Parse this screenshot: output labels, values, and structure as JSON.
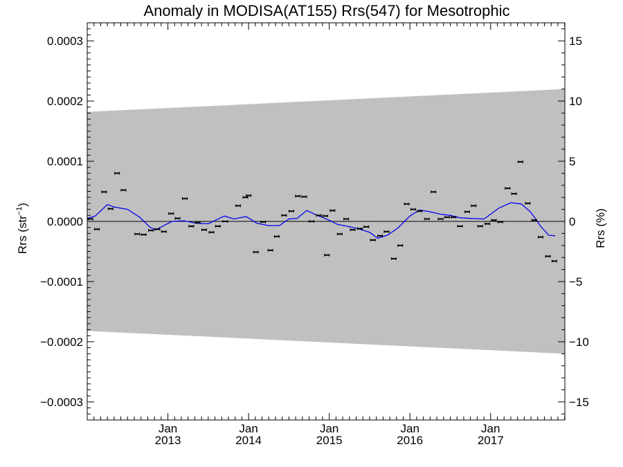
{
  "chart_data": {
    "type": "scatter",
    "title": "Anomaly in MODISA(AT155) Rrs(547) for Mesotrophic",
    "ylabel_left_main": "Rrs (str",
    "ylabel_left_sup": "−1",
    "ylabel_left_close": ")",
    "ylabel_right": "Rrs (%)",
    "xlim": [
      2012.0,
      2017.92
    ],
    "ylim_left": [
      -0.00033,
      0.00033
    ],
    "ylim_right": [
      -16.5,
      16.5
    ],
    "grid": false,
    "left_ticks": [
      {
        "value": 0.0003,
        "label": "0.0003"
      },
      {
        "value": 0.0002,
        "label": "0.0002"
      },
      {
        "value": 0.0001,
        "label": "0.0001"
      },
      {
        "value": 0.0,
        "label": "0.0000"
      },
      {
        "value": -0.0001,
        "label": "−0.0001"
      },
      {
        "value": -0.0002,
        "label": "−0.0002"
      },
      {
        "value": -0.0003,
        "label": "−0.0003"
      }
    ],
    "right_ticks": [
      {
        "value": 15,
        "label": "15"
      },
      {
        "value": 10,
        "label": "10"
      },
      {
        "value": 5,
        "label": "5"
      },
      {
        "value": 0,
        "label": "0"
      },
      {
        "value": -5,
        "label": "−5"
      },
      {
        "value": -10,
        "label": "−10"
      },
      {
        "value": -15,
        "label": "−15"
      }
    ],
    "x_ticks": [
      {
        "value": 2013.0,
        "label1": "Jan",
        "label2": "2013"
      },
      {
        "value": 2014.0,
        "label1": "Jan",
        "label2": "2014"
      },
      {
        "value": 2015.0,
        "label1": "Jan",
        "label2": "2015"
      },
      {
        "value": 2016.0,
        "label1": "Jan",
        "label2": "2016"
      },
      {
        "value": 2017.0,
        "label1": "Jan",
        "label2": "2017"
      }
    ],
    "envelope": {
      "x": [
        2012.0,
        2017.92
      ],
      "upper": [
        0.000182,
        0.00022
      ],
      "lower": [
        -0.000182,
        -0.00022
      ],
      "color": "#c0c0c0"
    },
    "series": [
      {
        "kind": "points",
        "color": "#000000",
        "points": [
          {
            "x": 2012.04,
            "y": 4e-06
          },
          {
            "x": 2012.12,
            "y": -1.3e-05
          },
          {
            "x": 2012.21,
            "y": 4.9e-05
          },
          {
            "x": 2012.29,
            "y": 2.1e-05
          },
          {
            "x": 2012.37,
            "y": 8e-05
          },
          {
            "x": 2012.45,
            "y": 5.2e-05
          },
          {
            "x": 2012.62,
            "y": -2.1e-05
          },
          {
            "x": 2012.7,
            "y": -2.2e-05
          },
          {
            "x": 2012.79,
            "y": -1.5e-05
          },
          {
            "x": 2012.87,
            "y": -1.3e-05
          },
          {
            "x": 2012.95,
            "y": -1.7e-05
          },
          {
            "x": 2013.04,
            "y": 1.3e-05
          },
          {
            "x": 2013.12,
            "y": 5e-06
          },
          {
            "x": 2013.21,
            "y": 3.8e-05
          },
          {
            "x": 2013.29,
            "y": -8e-06
          },
          {
            "x": 2013.37,
            "y": -2e-06
          },
          {
            "x": 2013.45,
            "y": -1.4e-05
          },
          {
            "x": 2013.54,
            "y": -1.8e-05
          },
          {
            "x": 2013.62,
            "y": -8e-06
          },
          {
            "x": 2013.71,
            "y": 0.0
          },
          {
            "x": 2013.87,
            "y": 2.6e-05
          },
          {
            "x": 2013.96,
            "y": 4e-05
          },
          {
            "x": 2014.0,
            "y": 4.3e-05
          },
          {
            "x": 2014.09,
            "y": -5.1e-05
          },
          {
            "x": 2014.18,
            "y": -1e-06
          },
          {
            "x": 2014.27,
            "y": -4.8e-05
          },
          {
            "x": 2014.35,
            "y": -2.5e-05
          },
          {
            "x": 2014.44,
            "y": 1e-05
          },
          {
            "x": 2014.53,
            "y": 1.7e-05
          },
          {
            "x": 2014.61,
            "y": 4.2e-05
          },
          {
            "x": 2014.69,
            "y": 4.1e-05
          },
          {
            "x": 2014.78,
            "y": 0.0
          },
          {
            "x": 2014.87,
            "y": 1e-05
          },
          {
            "x": 2014.95,
            "y": 9e-06
          },
          {
            "x": 2015.04,
            "y": 1.8e-05
          },
          {
            "x": 2014.97,
            "y": -5.6e-05
          },
          {
            "x": 2015.13,
            "y": -2.1e-05
          },
          {
            "x": 2015.21,
            "y": 4e-06
          },
          {
            "x": 2015.29,
            "y": -1.4e-05
          },
          {
            "x": 2015.38,
            "y": -1.2e-05
          },
          {
            "x": 2015.46,
            "y": -9e-06
          },
          {
            "x": 2015.54,
            "y": -3.1e-05
          },
          {
            "x": 2015.63,
            "y": -2.4e-05
          },
          {
            "x": 2015.71,
            "y": -1.7e-05
          },
          {
            "x": 2015.8,
            "y": -6.2e-05
          },
          {
            "x": 2015.88,
            "y": -4e-05
          },
          {
            "x": 2015.96,
            "y": 2.9e-05
          },
          {
            "x": 2016.04,
            "y": 2e-05
          },
          {
            "x": 2016.12,
            "y": 1.7e-05
          },
          {
            "x": 2016.21,
            "y": 4e-06
          },
          {
            "x": 2016.29,
            "y": 4.9e-05
          },
          {
            "x": 2016.38,
            "y": 4e-06
          },
          {
            "x": 2016.46,
            "y": 7e-06
          },
          {
            "x": 2016.54,
            "y": 7e-06
          },
          {
            "x": 2016.62,
            "y": -8e-06
          },
          {
            "x": 2016.71,
            "y": 1.6e-05
          },
          {
            "x": 2016.79,
            "y": 2.6e-05
          },
          {
            "x": 2016.87,
            "y": -8e-06
          },
          {
            "x": 2016.96,
            "y": -4e-06
          },
          {
            "x": 2017.04,
            "y": 2e-06
          },
          {
            "x": 2017.12,
            "y": -1e-06
          },
          {
            "x": 2017.21,
            "y": 5.5e-05
          },
          {
            "x": 2017.29,
            "y": 4.6e-05
          },
          {
            "x": 2017.37,
            "y": 9.9e-05
          },
          {
            "x": 2017.46,
            "y": 3e-05
          },
          {
            "x": 2017.54,
            "y": 2e-06
          },
          {
            "x": 2017.62,
            "y": -2.6e-05
          },
          {
            "x": 2017.71,
            "y": -5.8e-05
          },
          {
            "x": 2017.79,
            "y": -6.6e-05
          }
        ]
      },
      {
        "kind": "line",
        "color": "#0000ee",
        "points": [
          {
            "x": 2012.0,
            "y": 5e-06
          },
          {
            "x": 2012.1,
            "y": 9e-06
          },
          {
            "x": 2012.25,
            "y": 2.8e-05
          },
          {
            "x": 2012.33,
            "y": 2.4e-05
          },
          {
            "x": 2012.5,
            "y": 2e-05
          },
          {
            "x": 2012.65,
            "y": 7e-06
          },
          {
            "x": 2012.78,
            "y": -1e-05
          },
          {
            "x": 2012.85,
            "y": -1.4e-05
          },
          {
            "x": 2012.95,
            "y": -7e-06
          },
          {
            "x": 2013.05,
            "y": 0.0
          },
          {
            "x": 2013.2,
            "y": 1e-06
          },
          {
            "x": 2013.35,
            "y": -3e-06
          },
          {
            "x": 2013.5,
            "y": -4e-06
          },
          {
            "x": 2013.7,
            "y": 9e-06
          },
          {
            "x": 2013.82,
            "y": 4e-06
          },
          {
            "x": 2013.97,
            "y": 8e-06
          },
          {
            "x": 2014.1,
            "y": -3e-06
          },
          {
            "x": 2014.25,
            "y": -7e-06
          },
          {
            "x": 2014.38,
            "y": -7e-06
          },
          {
            "x": 2014.5,
            "y": 4e-06
          },
          {
            "x": 2014.6,
            "y": 5e-06
          },
          {
            "x": 2014.72,
            "y": 1.8e-05
          },
          {
            "x": 2014.85,
            "y": 1e-05
          },
          {
            "x": 2015.0,
            "y": 2e-06
          },
          {
            "x": 2015.1,
            "y": -5e-06
          },
          {
            "x": 2015.22,
            "y": -8e-06
          },
          {
            "x": 2015.35,
            "y": -1.2e-05
          },
          {
            "x": 2015.5,
            "y": -1.8e-05
          },
          {
            "x": 2015.6,
            "y": -2.8e-05
          },
          {
            "x": 2015.72,
            "y": -2.3e-05
          },
          {
            "x": 2015.85,
            "y": -1.1e-05
          },
          {
            "x": 2016.0,
            "y": 9e-06
          },
          {
            "x": 2016.12,
            "y": 1.9e-05
          },
          {
            "x": 2016.25,
            "y": 1.6e-05
          },
          {
            "x": 2016.38,
            "y": 1.2e-05
          },
          {
            "x": 2016.5,
            "y": 1e-05
          },
          {
            "x": 2016.62,
            "y": 6e-06
          },
          {
            "x": 2016.75,
            "y": 5e-06
          },
          {
            "x": 2016.92,
            "y": 4e-06
          },
          {
            "x": 2017.0,
            "y": 1.2e-05
          },
          {
            "x": 2017.1,
            "y": 2.2e-05
          },
          {
            "x": 2017.25,
            "y": 3.1e-05
          },
          {
            "x": 2017.38,
            "y": 2.9e-05
          },
          {
            "x": 2017.5,
            "y": 1.5e-05
          },
          {
            "x": 2017.62,
            "y": -8e-06
          },
          {
            "x": 2017.72,
            "y": -2.3e-05
          },
          {
            "x": 2017.8,
            "y": -2.4e-05
          }
        ]
      }
    ]
  }
}
